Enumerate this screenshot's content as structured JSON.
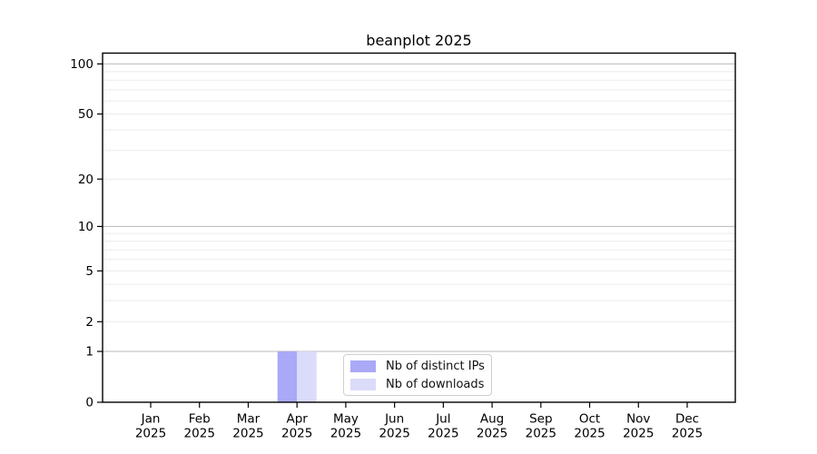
{
  "title": "beanplot 2025",
  "chart_data": {
    "type": "bar",
    "title": "beanplot 2025",
    "months": [
      "Jan",
      "Feb",
      "Mar",
      "Apr",
      "May",
      "Jun",
      "Jul",
      "Aug",
      "Sep",
      "Oct",
      "Nov",
      "Dec"
    ],
    "year": "2025",
    "series": [
      {
        "name": "Nb of distinct IPs",
        "color": "#a9a9f7",
        "values": [
          0,
          0,
          0,
          1,
          0,
          0,
          0,
          0,
          0,
          0,
          0,
          0
        ]
      },
      {
        "name": "Nb of downloads",
        "color": "#dbdbfa",
        "values": [
          0,
          0,
          0,
          1,
          0,
          0,
          0,
          0,
          0,
          0,
          0,
          0
        ]
      }
    ],
    "yscale": "log1p",
    "ylim": [
      0,
      115
    ],
    "yticks": [
      "0",
      "1",
      "2",
      "5",
      "10",
      "20",
      "50",
      "100"
    ],
    "grid": {
      "major": [
        1,
        10,
        100
      ],
      "minor": [
        2,
        3,
        4,
        5,
        6,
        7,
        8,
        9,
        20,
        30,
        40,
        50,
        60,
        70,
        80,
        90
      ],
      "major_color": "#bababa",
      "minor_color": "#ebebeb"
    },
    "legend_position": "lower center",
    "axis_color": "#000000",
    "background_color": "#ffffff"
  }
}
